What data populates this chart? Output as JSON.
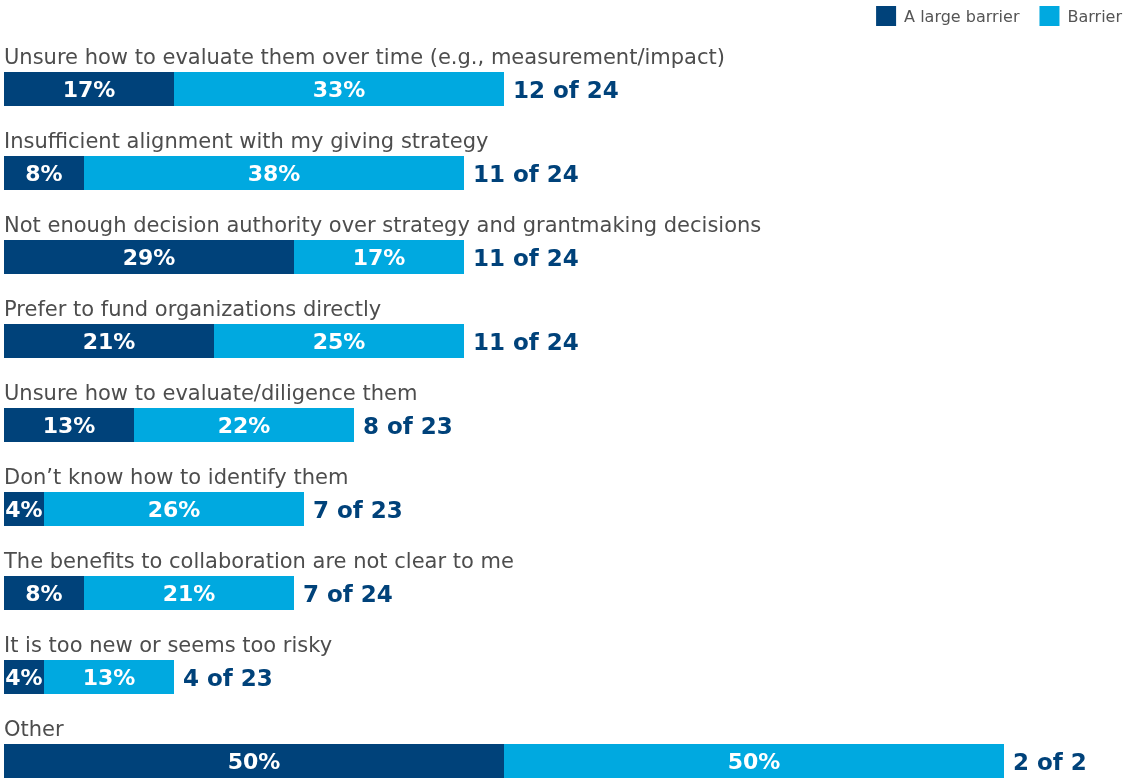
{
  "chart_data": {
    "type": "bar",
    "orientation": "horizontal",
    "stacked": true,
    "legend": "top right",
    "categories": [
      "Unsure how to evaluate them over time (e.g., measurement/impact)",
      "Insufficient alignment with my giving strategy",
      "Not enough decision authority over strategy and grantmaking decisions",
      "Prefer to fund organizations directly",
      "Unsure how to evaluate/diligence them",
      "Don’t know how to identify them",
      "The benefits to collaboration are not clear to me",
      "It is too new or seems too risky",
      "Other"
    ],
    "series": [
      {
        "name": "A large barrier",
        "color": "#00427a",
        "values": [
          17,
          8,
          29,
          21,
          13,
          4,
          8,
          4,
          50
        ],
        "value_labels": [
          "17%",
          "8%",
          "29%",
          "21%",
          "13%",
          "4%",
          "8%",
          "4%",
          "50%"
        ]
      },
      {
        "name": "Barrier",
        "color": "#00a9e0",
        "values": [
          33,
          38,
          17,
          25,
          22,
          26,
          21,
          13,
          50
        ],
        "value_labels": [
          "33%",
          "38%",
          "17%",
          "25%",
          "22%",
          "26%",
          "21%",
          "13%",
          "50%"
        ]
      }
    ],
    "totals": [
      "12 of 24",
      "11 of 24",
      "11 of 24",
      "11 of 24",
      "8 of 23",
      "7 of 23",
      "7 of 24",
      "4 of 23",
      "2 of 2"
    ]
  }
}
